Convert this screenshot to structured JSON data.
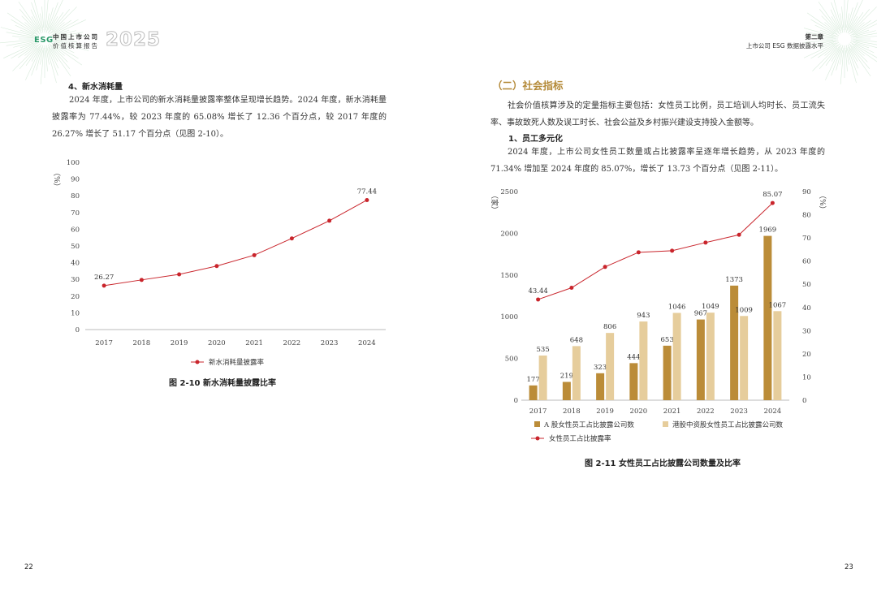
{
  "header": {
    "esg": "ESG",
    "logo_line1": "中国上市公司",
    "logo_line2": "价值核算报告",
    "year": "2025",
    "chapter": "第二章",
    "chapter_title": "上市公司 ESG 数据披露水平"
  },
  "left": {
    "heading": "4、新水消耗量",
    "paragraph": "2024 年度，上市公司的新水消耗量披露率整体呈现增长趋势。2024 年度，新水消耗量披露率为 77.44%，较 2023 年度的 65.08% 增长了 12.36 个百分点，较 2017 年度的 26.27% 增长了 51.17 个百分点（见图 2-10）。",
    "caption": "图 2-10 新水消耗量披露比率",
    "page_number": "22"
  },
  "right": {
    "section_title": "（二）社会指标",
    "paragraph1": "社会价值核算涉及的定量指标主要包括：女性员工比例，员工培训人均时长、员工流失率、事故致死人数及误工时长、社会公益及乡村振兴建设支持投入金额等。",
    "heading": "1、员工多元化",
    "paragraph2": "2024 年度，上市公司女性员工数量或占比披露率呈逐年增长趋势，从 2023 年度的 71.34% 增加至 2024 年度的 85.07%，增长了 13.73 个百分点（见图 2-11）。",
    "caption": "图 2-11 女性员工占比披露公司数量及比率",
    "page_number": "23"
  },
  "chart_data": [
    {
      "type": "line",
      "x": [
        "2017",
        "2018",
        "2019",
        "2020",
        "2021",
        "2022",
        "2023",
        "2024"
      ],
      "series": [
        {
          "name": "新水消耗量披露率",
          "values": [
            26.27,
            29.7,
            33,
            38,
            44.5,
            54.5,
            65.08,
            77.44
          ]
        }
      ],
      "data_labels": {
        "2017": "26.27",
        "2024": "77.44"
      },
      "ylabel": "（%）",
      "ylim": [
        0,
        100
      ],
      "yticks": [
        0,
        10,
        20,
        30,
        40,
        50,
        60,
        70,
        80,
        90,
        100
      ],
      "grid": false,
      "legend_position": "bottom",
      "color": "#c9252c"
    },
    {
      "type": "bar",
      "x": [
        "2017",
        "2018",
        "2019",
        "2020",
        "2021",
        "2022",
        "2023",
        "2024"
      ],
      "series": [
        {
          "name": "A 股女性员工占比披露公司数",
          "values": [
            177,
            219,
            323,
            444,
            653,
            967,
            1373,
            1969
          ],
          "axis": "left",
          "color": "#bb8c38"
        },
        {
          "name": "港股中资股女性员工占比披露公司数",
          "values": [
            535,
            648,
            806,
            943,
            1046,
            1049,
            1009,
            1067
          ],
          "axis": "left",
          "color": "#e6cd9c"
        },
        {
          "name": "女性员工占比披露率",
          "type": "line",
          "values": [
            43.44,
            48.5,
            57.5,
            63.8,
            64.5,
            68,
            71.34,
            85.07
          ],
          "axis": "right",
          "color": "#c9252c"
        }
      ],
      "line_labels": {
        "2017": "43.44",
        "2024": "85.07"
      },
      "ylabel_left": "（家）",
      "ylabel_right": "（%）",
      "ylim_left": [
        0,
        2500
      ],
      "yticks_left": [
        0,
        500,
        1000,
        1500,
        2000,
        2500
      ],
      "ylim_right": [
        0,
        90
      ],
      "yticks_right": [
        0,
        10,
        20,
        30,
        40,
        50,
        60,
        70,
        80,
        90
      ],
      "grid": false,
      "legend_position": "bottom"
    }
  ]
}
